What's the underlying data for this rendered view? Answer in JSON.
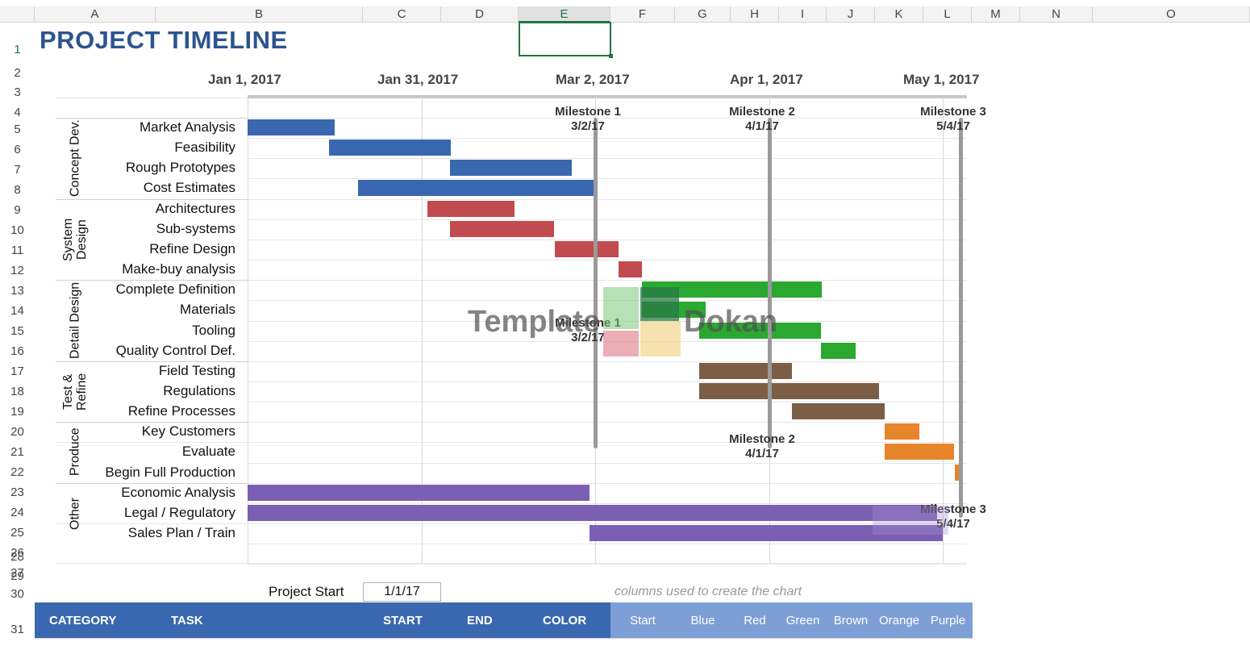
{
  "sheet": {
    "columns": [
      "A",
      "B",
      "C",
      "D",
      "E",
      "F",
      "G",
      "H",
      "I",
      "J",
      "K",
      "L",
      "M",
      "N",
      "O"
    ],
    "selected_column": "E",
    "rows": [
      "1",
      "2",
      "3",
      "4",
      "5",
      "6",
      "7",
      "8",
      "9",
      "10",
      "11",
      "12",
      "13",
      "14",
      "15",
      "16",
      "17",
      "18",
      "19",
      "20",
      "21",
      "22",
      "23",
      "24",
      "25",
      "26",
      "27",
      "28",
      "29",
      "30",
      "31"
    ],
    "selected_row": "1"
  },
  "title": "PROJECT TIMELINE",
  "axis": {
    "dates": [
      "Jan 1, 2017",
      "Jan 31, 2017",
      "Mar 2, 2017",
      "Apr 1, 2017",
      "May 1, 2017"
    ]
  },
  "categories": [
    "Concept Dev.",
    "System Design",
    "Detail Design",
    "Test & Refine",
    "Produce",
    "Other"
  ],
  "tasks": [
    "Market Analysis",
    "Feasibility",
    "Rough Prototypes",
    "Cost Estimates",
    "Architectures",
    "Sub-systems",
    "Refine Design",
    "Make-buy analysis",
    "Complete Definition",
    "Materials",
    "Tooling",
    "Quality Control Def.",
    "Field Testing",
    "Regulations",
    "Refine Processes",
    "Key Customers",
    "Evaluate",
    "Begin Full Production",
    "Economic Analysis",
    "Legal / Regulatory",
    "Sales Plan / Train"
  ],
  "milestones": [
    {
      "name": "Milestone 1",
      "date": "3/2/17"
    },
    {
      "name": "Milestone 2",
      "date": "4/1/17"
    },
    {
      "name": "Milestone 3",
      "date": "5/4/17"
    }
  ],
  "watermark": {
    "left": "Template",
    "right": "Dokan"
  },
  "project_start": {
    "label": "Project Start",
    "value": "1/1/17"
  },
  "chart_note": "columns used to create the chart",
  "table_header": {
    "category": "CATEGORY",
    "task": "TASK",
    "start": "START",
    "end": "END",
    "color": "COLOR",
    "aux": [
      "Start",
      "Blue",
      "Red",
      "Green",
      "Brown",
      "Orange",
      "Purple"
    ]
  },
  "colors": {
    "blue": "#3a68b0",
    "red": "#c24b4f",
    "green": "#2aa830",
    "brown": "#7b5e45",
    "orange": "#e6852a",
    "purple": "#7b5fb3",
    "header_dark": "#3a68b0",
    "header_light": "#7e9fd6",
    "title": "#2c5490"
  },
  "chart_data": {
    "type": "bar",
    "orientation": "horizontal-gantt",
    "x_range": [
      "2017-01-01",
      "2017-05-06"
    ],
    "tasks": [
      {
        "task": "Market Analysis",
        "start": "2017-01-01",
        "end": "2017-01-16",
        "color": "blue"
      },
      {
        "task": "Feasibility",
        "start": "2017-01-15",
        "end": "2017-02-05",
        "color": "blue"
      },
      {
        "task": "Rough Prototypes",
        "start": "2017-02-05",
        "end": "2017-02-26",
        "color": "blue"
      },
      {
        "task": "Cost Estimates",
        "start": "2017-01-20",
        "end": "2017-03-02",
        "color": "blue"
      },
      {
        "task": "Architectures",
        "start": "2017-02-01",
        "end": "2017-02-16",
        "color": "red"
      },
      {
        "task": "Sub-systems",
        "start": "2017-02-05",
        "end": "2017-02-23",
        "color": "red"
      },
      {
        "task": "Refine Design",
        "start": "2017-02-23",
        "end": "2017-03-06",
        "color": "red"
      },
      {
        "task": "Make-buy analysis",
        "start": "2017-03-06",
        "end": "2017-03-10",
        "color": "red"
      },
      {
        "task": "Complete Definition",
        "start": "2017-03-10",
        "end": "2017-04-10",
        "color": "green"
      },
      {
        "task": "Materials",
        "start": "2017-03-10",
        "end": "2017-03-21",
        "color": "green"
      },
      {
        "task": "Tooling",
        "start": "2017-03-20",
        "end": "2017-04-10",
        "color": "green"
      },
      {
        "task": "Quality Control Def.",
        "start": "2017-04-10",
        "end": "2017-04-16",
        "color": "green"
      },
      {
        "task": "Field Testing",
        "start": "2017-03-20",
        "end": "2017-04-05",
        "color": "brown"
      },
      {
        "task": "Regulations",
        "start": "2017-03-20",
        "end": "2017-04-20",
        "color": "brown"
      },
      {
        "task": "Refine Processes",
        "start": "2017-04-05",
        "end": "2017-04-21",
        "color": "brown"
      },
      {
        "task": "Key Customers",
        "start": "2017-04-21",
        "end": "2017-04-27",
        "color": "orange"
      },
      {
        "task": "Evaluate",
        "start": "2017-04-21",
        "end": "2017-05-03",
        "color": "orange"
      },
      {
        "task": "Begin Full Production",
        "start": "2017-05-03",
        "end": "2017-05-04",
        "color": "orange"
      },
      {
        "task": "Economic Analysis",
        "start": "2017-01-01",
        "end": "2017-03-01",
        "color": "purple"
      },
      {
        "task": "Legal / Regulatory",
        "start": "2017-01-01",
        "end": "2017-04-30",
        "color": "purple"
      },
      {
        "task": "Sales Plan / Train",
        "start": "2017-03-01",
        "end": "2017-05-01",
        "color": "purple"
      }
    ],
    "milestones": [
      "2017-03-02",
      "2017-04-01",
      "2017-05-04"
    ]
  }
}
